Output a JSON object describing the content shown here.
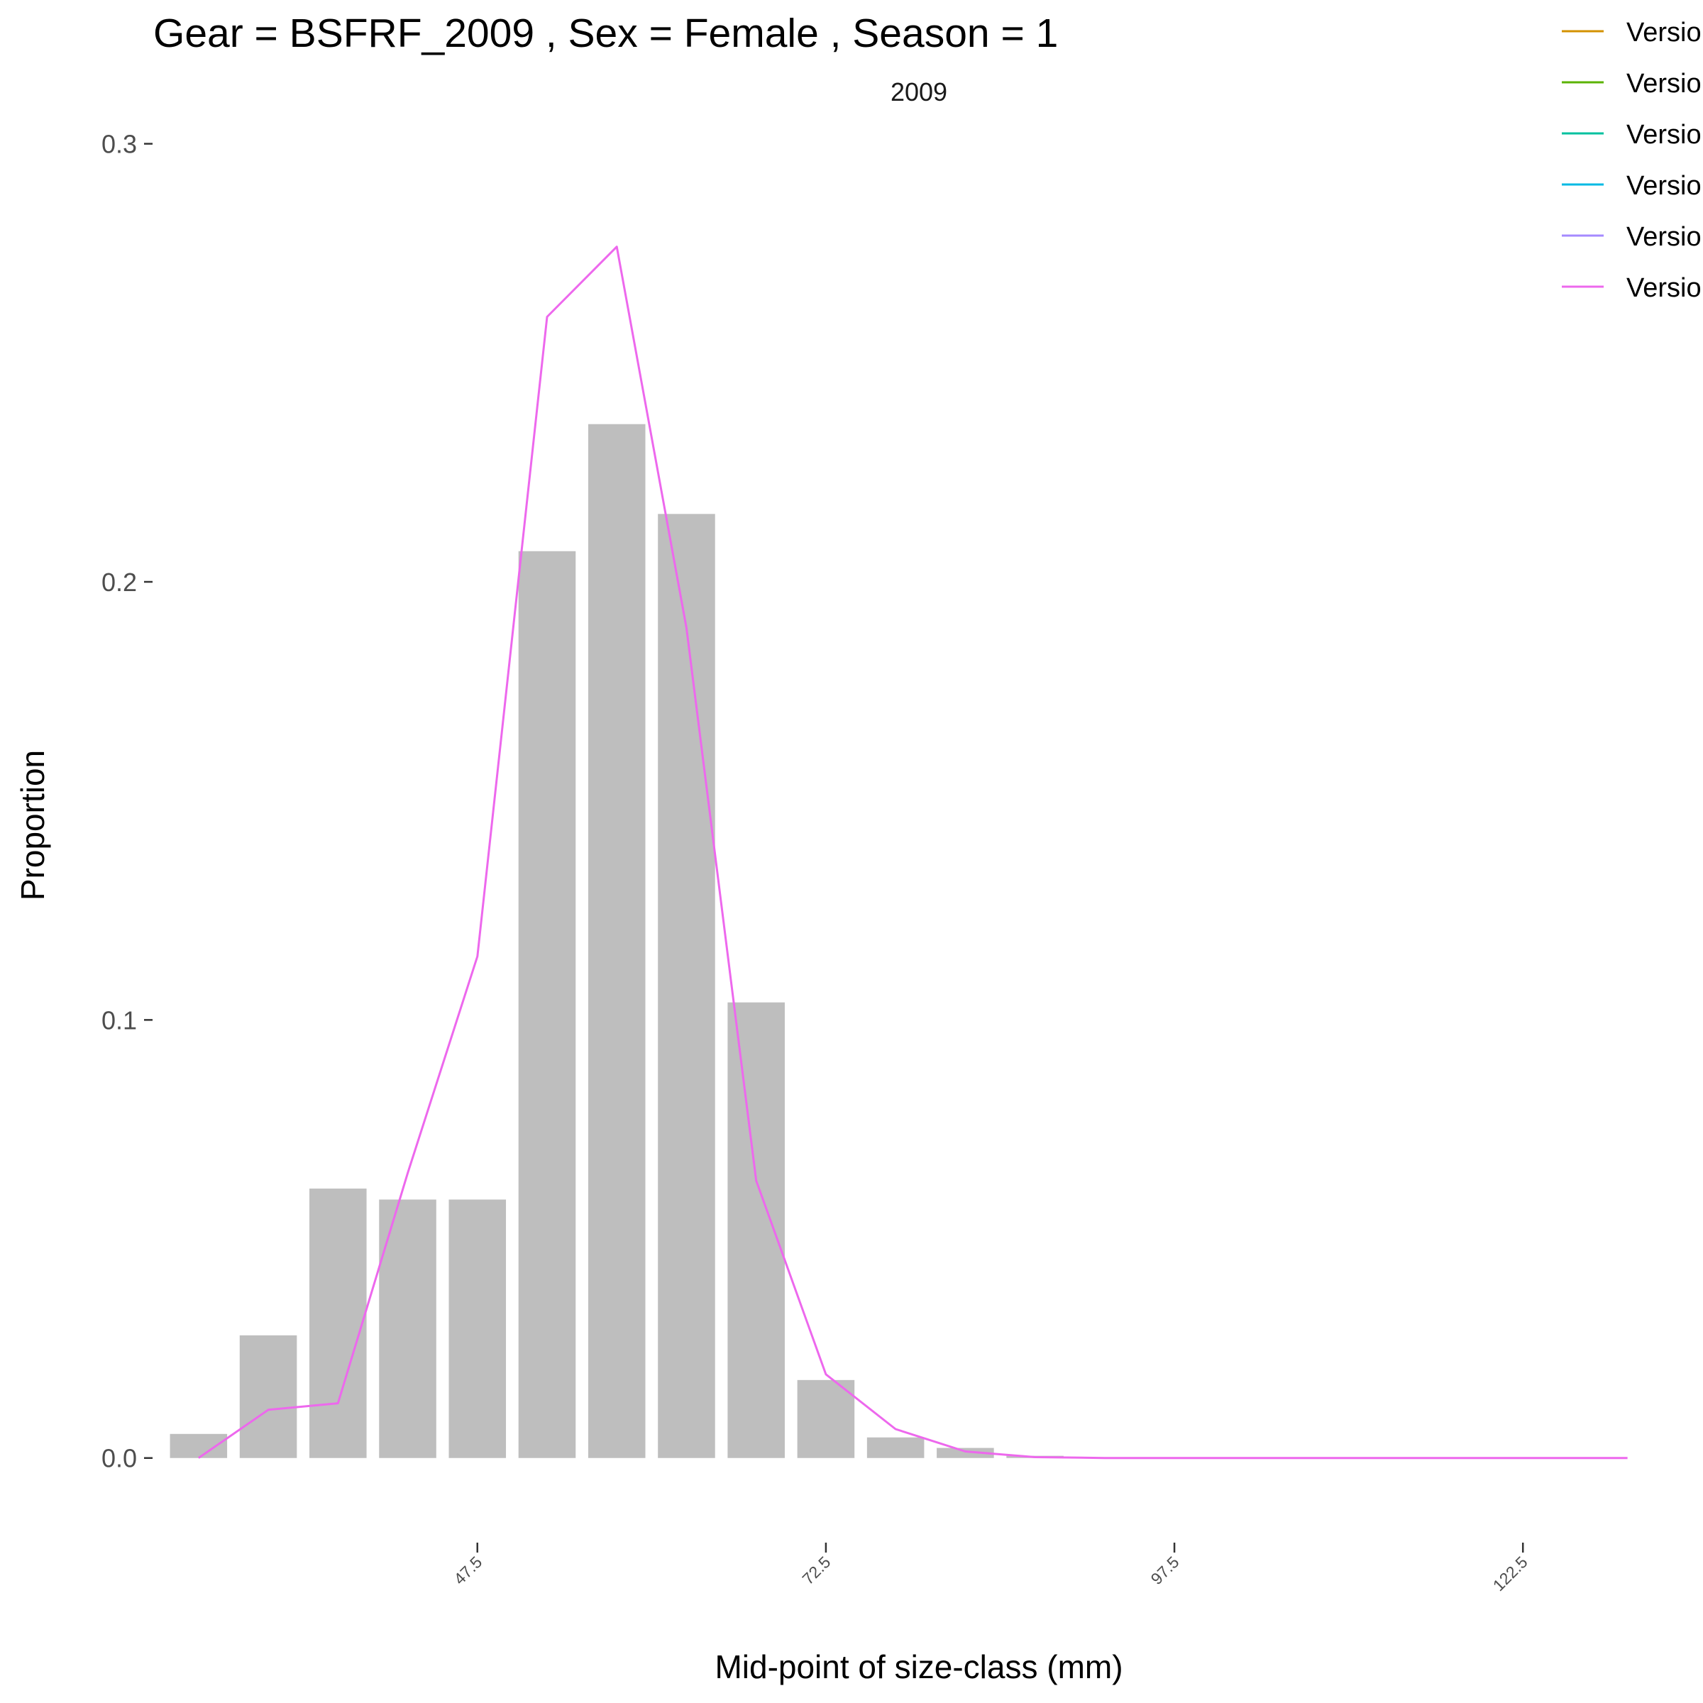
{
  "chart_data": {
    "type": "bar",
    "title": "Gear = BSFRF_2009 , Sex = Female , Season = 1",
    "subtitle": "2009",
    "xlabel": "Mid-point of size-class (mm)",
    "ylabel": "Proportion",
    "xlim": [
      24.2,
      131.6
    ],
    "ylim": [
      -0.013,
      0.315
    ],
    "x_ticks": [
      47.5,
      72.5,
      97.5,
      122.5
    ],
    "x_tick_labels": [
      "47.5",
      "72.5",
      "97.5",
      "122.5"
    ],
    "y_ticks": [
      0.0,
      0.1,
      0.2,
      0.3
    ],
    "y_tick_labels": [
      "0.0",
      "0.1",
      "0.2",
      "0.3"
    ],
    "grid": false,
    "legend_position": "top-right",
    "bar_color": "#bebebe",
    "bars": {
      "x": [
        27.5,
        32.5,
        37.5,
        42.5,
        47.5,
        52.5,
        57.5,
        62.5,
        67.5,
        72.5,
        77.5,
        82.5,
        87.5
      ],
      "values": [
        0.0055,
        0.028,
        0.0615,
        0.059,
        0.059,
        0.207,
        0.236,
        0.2155,
        0.104,
        0.0178,
        0.0047,
        0.0023,
        0.0005
      ]
    },
    "series": [
      {
        "name": "Versio",
        "color": "#d39200",
        "x": [],
        "y": []
      },
      {
        "name": "Versio",
        "color": "#5bb300",
        "x": [],
        "y": []
      },
      {
        "name": "Versio",
        "color": "#00c19f",
        "x": [],
        "y": []
      },
      {
        "name": "Versio",
        "color": "#00b9e3",
        "x": [],
        "y": []
      },
      {
        "name": "Versio",
        "color": "#a58aff",
        "x": [],
        "y": []
      },
      {
        "name": "Versio",
        "color": "#ed68ed",
        "x": [
          27.5,
          32.5,
          37.5,
          42.5,
          47.5,
          52.5,
          57.5,
          62.5,
          67.5,
          72.5,
          77.5,
          82.5,
          87.5,
          92.5,
          97.5,
          102.5,
          107.5,
          112.5,
          117.5,
          122.5,
          127.5,
          130.0
        ],
        "y": [
          0.0,
          0.011,
          0.0125,
          0.065,
          0.1145,
          0.2605,
          0.2765,
          0.1895,
          0.0633,
          0.0191,
          0.0066,
          0.0015,
          0.0002,
          0.0,
          0.0,
          0.0,
          0.0,
          0.0,
          0.0,
          0.0,
          0.0,
          0.0
        ]
      }
    ]
  }
}
